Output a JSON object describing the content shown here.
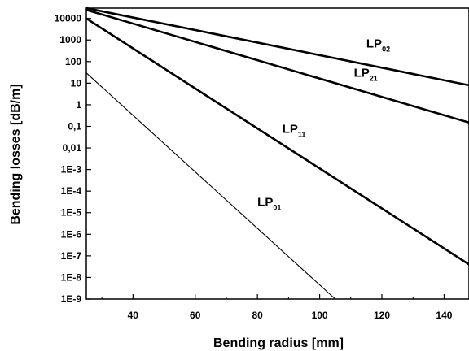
{
  "chart_data": {
    "type": "line",
    "title": "",
    "xlabel": "Bending radius [mm]",
    "ylabel": "Bending losses [dB/m]",
    "xlim": [
      25,
      148
    ],
    "ylim": [
      1e-09,
      30000
    ],
    "yscale": "log",
    "x_ticks": [
      {
        "value": 40,
        "label": "40"
      },
      {
        "value": 60,
        "label": "60"
      },
      {
        "value": 80,
        "label": "80"
      },
      {
        "value": 100,
        "label": "100"
      },
      {
        "value": 120,
        "label": "120"
      },
      {
        "value": 140,
        "label": "140"
      }
    ],
    "y_ticks": [
      {
        "value": 10000,
        "label": "10000"
      },
      {
        "value": 1000,
        "label": "1000"
      },
      {
        "value": 100,
        "label": "100"
      },
      {
        "value": 10,
        "label": "10"
      },
      {
        "value": 1,
        "label": "1"
      },
      {
        "value": 0.1,
        "label": "0,1"
      },
      {
        "value": 0.01,
        "label": "0,01"
      },
      {
        "value": 0.001,
        "label": "1E-3"
      },
      {
        "value": 0.0001,
        "label": "1E-4"
      },
      {
        "value": 1e-05,
        "label": "1E-5"
      },
      {
        "value": 1e-06,
        "label": "1E-6"
      },
      {
        "value": 1e-07,
        "label": "1E-7"
      },
      {
        "value": 1e-08,
        "label": "1E-8"
      },
      {
        "value": 1e-09,
        "label": "1E-9"
      }
    ],
    "grid": false,
    "legend": "none",
    "series": [
      {
        "name_main": "LP",
        "name_sub": "01",
        "x": [
          25,
          105
        ],
        "y": [
          30,
          1e-09
        ],
        "stroke": "#000000",
        "weight": "thin",
        "label_at": {
          "x": 80,
          "y": 2e-05
        }
      },
      {
        "name_main": "LP",
        "name_sub": "11",
        "x": [
          25,
          148
        ],
        "y": [
          10000,
          4e-08
        ],
        "stroke": "#000000",
        "weight": "bold",
        "label_at": {
          "x": 88,
          "y": 0.05
        }
      },
      {
        "name_main": "LP",
        "name_sub": "21",
        "x": [
          25,
          148
        ],
        "y": [
          25000,
          0.15
        ],
        "stroke": "#000000",
        "weight": "bold",
        "label_at": {
          "x": 111,
          "y": 20
        }
      },
      {
        "name_main": "LP",
        "name_sub": "02",
        "x": [
          25,
          148
        ],
        "y": [
          30000,
          8
        ],
        "stroke": "#000000",
        "weight": "bold",
        "label_at": {
          "x": 115,
          "y": 450
        }
      }
    ]
  }
}
